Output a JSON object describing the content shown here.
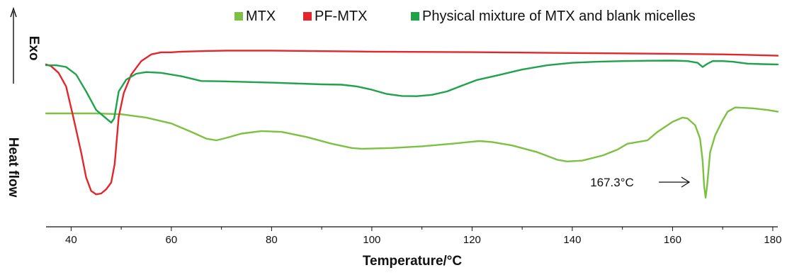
{
  "chart_data": {
    "type": "line",
    "title": "",
    "xlabel": "Temperature/°C",
    "ylabel": "Heat flow",
    "y_direction_label": "Exo",
    "xlim": [
      35,
      181
    ],
    "ylim": [
      0,
      100
    ],
    "y_units": "relative heat flow (arbitrary)",
    "grid": false,
    "legend_position": "top",
    "x_ticks": [
      40,
      60,
      80,
      100,
      120,
      140,
      160,
      180
    ],
    "x_tick_labels": [
      "40",
      "60",
      "80",
      "100",
      "120",
      "140",
      "160",
      "180"
    ],
    "series": [
      {
        "name": "MTX",
        "color": "#7dc142",
        "points": [
          [
            35,
            58
          ],
          [
            40,
            58
          ],
          [
            45,
            58
          ],
          [
            50,
            57.5
          ],
          [
            55,
            55.5
          ],
          [
            60,
            52
          ],
          [
            64,
            47
          ],
          [
            67,
            43
          ],
          [
            69,
            42
          ],
          [
            71,
            43.5
          ],
          [
            74,
            46
          ],
          [
            78,
            47.5
          ],
          [
            82,
            47
          ],
          [
            87,
            44
          ],
          [
            92,
            40
          ],
          [
            96,
            37.5
          ],
          [
            98,
            37
          ],
          [
            104,
            37.5
          ],
          [
            110,
            38.5
          ],
          [
            116,
            40
          ],
          [
            120,
            41.2
          ],
          [
            121.5,
            41.6
          ],
          [
            124,
            41
          ],
          [
            128,
            39
          ],
          [
            133,
            35
          ],
          [
            137,
            30.5
          ],
          [
            139,
            29.5
          ],
          [
            142,
            30
          ],
          [
            146,
            33
          ],
          [
            149,
            36.5
          ],
          [
            151,
            40
          ],
          [
            153,
            41
          ],
          [
            155,
            42
          ],
          [
            157,
            47
          ],
          [
            160,
            53
          ],
          [
            162,
            55.5
          ],
          [
            163,
            55
          ],
          [
            164.5,
            51
          ],
          [
            165.5,
            43
          ],
          [
            166,
            30
          ],
          [
            166.3,
            15
          ],
          [
            166.6,
            8
          ],
          [
            166.9,
            15
          ],
          [
            167.5,
            35
          ],
          [
            168.5,
            45
          ],
          [
            170,
            54
          ],
          [
            171,
            59
          ],
          [
            172.5,
            61.5
          ],
          [
            176,
            61
          ],
          [
            179,
            60
          ],
          [
            181,
            59
          ]
        ]
      },
      {
        "name": "PF-MTX",
        "color": "#e3262b",
        "points": [
          [
            35,
            87
          ],
          [
            36,
            86
          ],
          [
            37.5,
            82
          ],
          [
            39,
            74
          ],
          [
            40.5,
            55
          ],
          [
            42,
            35
          ],
          [
            43,
            20
          ],
          [
            44,
            12
          ],
          [
            45,
            10
          ],
          [
            46,
            10.5
          ],
          [
            47,
            13
          ],
          [
            48,
            17
          ],
          [
            48.7,
            28
          ],
          [
            49.5,
            56
          ],
          [
            50.5,
            70
          ],
          [
            52,
            81
          ],
          [
            54,
            89
          ],
          [
            56,
            93
          ],
          [
            58,
            94.2
          ],
          [
            60,
            94.2
          ],
          [
            62,
            94.6
          ],
          [
            67,
            95
          ],
          [
            71,
            95.2
          ],
          [
            80,
            95.2
          ],
          [
            100,
            94.6
          ],
          [
            120,
            94.3
          ],
          [
            140,
            93.8
          ],
          [
            160,
            93.3
          ],
          [
            170,
            93
          ],
          [
            175,
            92.7
          ],
          [
            181,
            92.2
          ]
        ]
      },
      {
        "name": "Physical mixture of MTX and blank micelles",
        "color": "#1ea34a",
        "points": [
          [
            35,
            86.5
          ],
          [
            37,
            86.5
          ],
          [
            39,
            85.5
          ],
          [
            41,
            81
          ],
          [
            43,
            71
          ],
          [
            45,
            60
          ],
          [
            47,
            55
          ],
          [
            48,
            52.5
          ],
          [
            48.6,
            55
          ],
          [
            49.5,
            71
          ],
          [
            51,
            78
          ],
          [
            53,
            81.5
          ],
          [
            55,
            82.5
          ],
          [
            58,
            82
          ],
          [
            62,
            80
          ],
          [
            66,
            77.2
          ],
          [
            70,
            77
          ],
          [
            80,
            76.2
          ],
          [
            90,
            75.2
          ],
          [
            94,
            75
          ],
          [
            97,
            74
          ],
          [
            100,
            72
          ],
          [
            103,
            69.5
          ],
          [
            106,
            68.3
          ],
          [
            109,
            68.2
          ],
          [
            112,
            69
          ],
          [
            115,
            71
          ],
          [
            118,
            74.5
          ],
          [
            121,
            77.8
          ],
          [
            125,
            80.5
          ],
          [
            130,
            84
          ],
          [
            135,
            86.5
          ],
          [
            140,
            88
          ],
          [
            145,
            88.6
          ],
          [
            150,
            89
          ],
          [
            155,
            89.2
          ],
          [
            160,
            89.3
          ],
          [
            163,
            89
          ],
          [
            165,
            88
          ],
          [
            166,
            85.5
          ],
          [
            167,
            87.5
          ],
          [
            168,
            89
          ],
          [
            170,
            89
          ],
          [
            172,
            88.6
          ],
          [
            175,
            87.5
          ],
          [
            178,
            87.2
          ],
          [
            181,
            87
          ]
        ]
      }
    ],
    "annotations": [
      {
        "text": "167.3°C",
        "x": 167.3
      }
    ]
  }
}
